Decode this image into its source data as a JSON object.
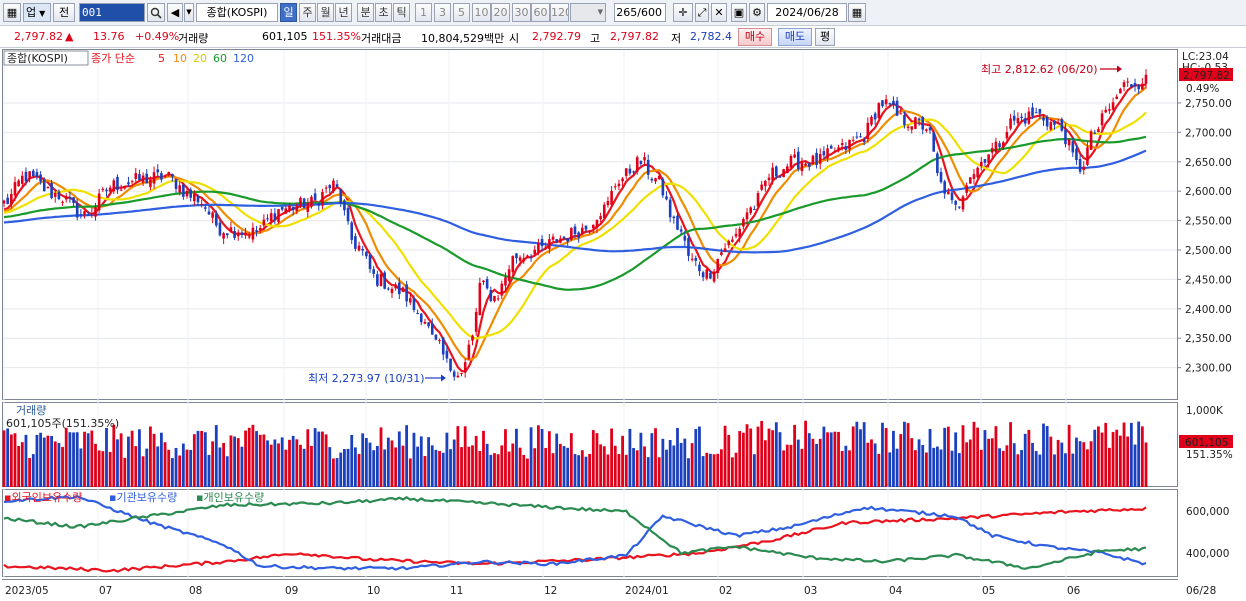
{
  "toolbar": {
    "market_select": "업",
    "prev_label": "전",
    "code": "001",
    "index_name": "종합(KOSPI)",
    "periods": [
      "일",
      "주",
      "월",
      "년",
      "분",
      "초",
      "틱"
    ],
    "active_period": "일",
    "intervals": [
      "1",
      "3",
      "5",
      "10",
      "20",
      "30",
      "60",
      "120"
    ],
    "count": "265/600",
    "date": "2024/06/28",
    "icons": [
      "window-icon",
      "search-icon",
      "speaker-icon",
      "chevron-down-icon",
      "crosshair-icon",
      "zoom-icon",
      "save-icon",
      "gear-icon",
      "calendar-icon"
    ]
  },
  "quote": {
    "price": "2,797.82",
    "change_arrow": "▲",
    "change": "13.76",
    "change_pct": "+0.49%",
    "volume_label": "거래량",
    "volume": "601,105",
    "volume_ratio": "151.35%",
    "amount_label": "거래대금",
    "amount": "10,804,529백만",
    "open_label": "시",
    "open": "2,792.79",
    "high_label": "고",
    "high": "2,797.82",
    "low_label": "저",
    "low": "2,782.4",
    "buy_button": "매수",
    "sell_button": "매도",
    "eval_button": "평"
  },
  "colors": {
    "up": "#e0001a",
    "down": "#1a3fbf",
    "ma5": "#e8141e",
    "ma10": "#f08c00",
    "ma20": "#f0e000",
    "ma60": "#1a9a2a",
    "ma120": "#2f5fe0",
    "foreign": "#e8141e",
    "institution": "#2f5fe0",
    "individual": "#2a8a50"
  },
  "price_pane": {
    "legend_title": "종합(KOSPI)",
    "legend_ma_label": "종가 단순",
    "ma_periods": [
      "5",
      "10",
      "20",
      "60",
      "120"
    ],
    "lc_label": "LC:23.04",
    "hc_label": "HC:-0.53",
    "last_price_tag": "2,797.82",
    "last_change_tag": "0.49%",
    "high_annotation": "최고 2,812.62 (06/20)",
    "low_annotation": "최저 2,273.97 (10/31)"
  },
  "volume_pane": {
    "title": "거래량",
    "subtitle": "601,105주(151.35%)",
    "axis_label": "1,000K",
    "last_tag": "601,105",
    "last_pct": "151.35%"
  },
  "holdings_pane": {
    "legend": [
      "외국인보유수량",
      "기관보유수량",
      "개인보유수량"
    ],
    "axis_labels": [
      "600,000",
      "400,000"
    ]
  },
  "x_axis": [
    "2023/05",
    "07",
    "08",
    "09",
    "10",
    "11",
    "12",
    "2024/01",
    "02",
    "03",
    "04",
    "05",
    "06",
    "06/28"
  ],
  "chart_data": {
    "type": "candlestick",
    "title": "종합(KOSPI)",
    "period": "daily",
    "count": 265,
    "x_ticks": [
      "2023/05",
      "07",
      "08",
      "09",
      "10",
      "11",
      "12",
      "2024/01",
      "02",
      "03",
      "04",
      "05",
      "06"
    ],
    "last_date": "06/28",
    "y_axis_ticks": [
      2750,
      2700,
      2650,
      2600,
      2550,
      2500,
      2450,
      2400,
      2350,
      2300
    ],
    "y_range": [
      2245,
      2840
    ],
    "close_anchors": [
      [
        0,
        2580
      ],
      [
        6,
        2625
      ],
      [
        14,
        2595
      ],
      [
        22,
        2560
      ],
      [
        30,
        2610
      ],
      [
        38,
        2620
      ],
      [
        44,
        2625
      ],
      [
        52,
        2590
      ],
      [
        60,
        2535
      ],
      [
        68,
        2530
      ],
      [
        76,
        2570
      ],
      [
        84,
        2580
      ],
      [
        90,
        2610
      ],
      [
        96,
        2510
      ],
      [
        102,
        2450
      ],
      [
        108,
        2430
      ],
      [
        114,
        2390
      ],
      [
        118,
        2340
      ],
      [
        122,
        2300
      ],
      [
        125,
        2290
      ],
      [
        128,
        2350
      ],
      [
        130,
        2440
      ],
      [
        134,
        2420
      ],
      [
        140,
        2490
      ],
      [
        146,
        2500
      ],
      [
        152,
        2520
      ],
      [
        158,
        2535
      ],
      [
        164,
        2570
      ],
      [
        168,
        2620
      ],
      [
        174,
        2650
      ],
      [
        178,
        2620
      ],
      [
        184,
        2540
      ],
      [
        188,
        2480
      ],
      [
        192,
        2460
      ],
      [
        198,
        2510
      ],
      [
        204,
        2570
      ],
      [
        210,
        2630
      ],
      [
        216,
        2650
      ],
      [
        222,
        2650
      ],
      [
        228,
        2670
      ],
      [
        234,
        2690
      ],
      [
        240,
        2750
      ],
      [
        246,
        2720
      ],
      [
        252,
        2710
      ],
      [
        256,
        2610
      ],
      [
        260,
        2570
      ],
      [
        264,
        2630
      ],
      [
        270,
        2670
      ],
      [
        276,
        2720
      ],
      [
        282,
        2730
      ],
      [
        288,
        2710
      ],
      [
        294,
        2640
      ],
      [
        298,
        2700
      ],
      [
        302,
        2740
      ],
      [
        306,
        2780
      ],
      [
        310,
        2785
      ],
      [
        312,
        2797.82
      ]
    ],
    "series": [
      {
        "name": "5",
        "kind": "moving_average"
      },
      {
        "name": "10",
        "kind": "moving_average"
      },
      {
        "name": "20",
        "kind": "moving_average"
      },
      {
        "name": "60",
        "kind": "moving_average"
      },
      {
        "name": "120",
        "kind": "moving_average"
      }
    ],
    "annotations": [
      {
        "label": "최고 2,812.62 (06/20)",
        "value": 2812.62
      },
      {
        "label": "최저 2,273.97 (10/31)",
        "value": 2273.97
      }
    ],
    "volume": {
      "last": 601105,
      "axis_max_label": "1,000K",
      "range": [
        0,
        1000000
      ]
    },
    "holdings": {
      "range": [
        280000,
        680000
      ],
      "ticks": [
        600000,
        400000
      ],
      "series": [
        {
          "name": "외국인보유수량",
          "anchors": [
            [
              0,
              330
            ],
            [
              30,
              310
            ],
            [
              60,
              350
            ],
            [
              80,
              390
            ],
            [
              100,
              360
            ],
            [
              130,
              340
            ],
            [
              160,
              360
            ],
            [
              190,
              390
            ],
            [
              210,
              450
            ],
            [
              230,
              530
            ],
            [
              260,
              550
            ],
            [
              290,
              580
            ],
            [
              312,
              595
            ]
          ]
        },
        {
          "name": "기관보유수량",
          "anchors": [
            [
              0,
              630
            ],
            [
              20,
              650
            ],
            [
              40,
              530
            ],
            [
              60,
              430
            ],
            [
              70,
              330
            ],
            [
              90,
              320
            ],
            [
              110,
              320
            ],
            [
              130,
              350
            ],
            [
              150,
              340
            ],
            [
              170,
              380
            ],
            [
              180,
              560
            ],
            [
              200,
              470
            ],
            [
              215,
              510
            ],
            [
              235,
              600
            ],
            [
              260,
              560
            ],
            [
              270,
              470
            ],
            [
              285,
              420
            ],
            [
              300,
              390
            ],
            [
              312,
              340
            ]
          ]
        },
        {
          "name": "개인보유수량",
          "anchors": [
            [
              0,
              550
            ],
            [
              20,
              510
            ],
            [
              40,
              560
            ],
            [
              60,
              610
            ],
            [
              90,
              620
            ],
            [
              110,
              640
            ],
            [
              130,
              620
            ],
            [
              150,
              600
            ],
            [
              170,
              580
            ],
            [
              185,
              390
            ],
            [
              200,
              420
            ],
            [
              220,
              370
            ],
            [
              240,
              350
            ],
            [
              260,
              380
            ],
            [
              280,
              320
            ],
            [
              300,
              400
            ],
            [
              312,
              410
            ]
          ]
        }
      ]
    }
  }
}
